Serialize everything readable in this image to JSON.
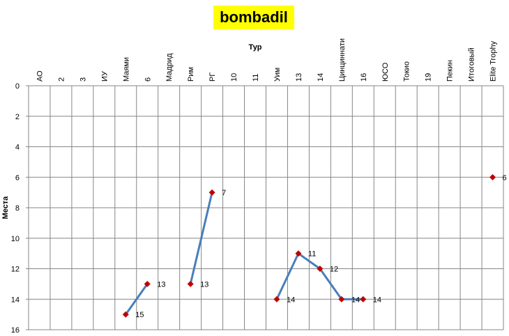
{
  "chart_data": {
    "type": "line",
    "title": "bombadil",
    "xlabel": "Тур",
    "ylabel": "Места",
    "categories": [
      "АО",
      "2",
      "3",
      "ИУ",
      "Маями",
      "6",
      "Мадрид",
      "Рим",
      "РГ",
      "10",
      "11",
      "Уим",
      "13",
      "14",
      "Цинциннати",
      "16",
      "ЮСО",
      "Токио",
      "19",
      "Пекин",
      "Итоговый",
      "Elite Trophy"
    ],
    "series": [
      {
        "values": [
          null,
          null,
          null,
          null,
          15,
          13,
          null,
          13,
          7,
          null,
          null,
          14,
          11,
          12,
          14,
          14,
          null,
          null,
          null,
          null,
          null,
          6
        ],
        "data_labels": [
          "",
          "",
          "",
          "",
          "15",
          "13",
          "",
          "13",
          "7",
          "",
          "",
          "14",
          "11",
          "12",
          "14",
          "14",
          "",
          "",
          "",
          "",
          "",
          "6"
        ]
      }
    ],
    "ylim": [
      0,
      16
    ],
    "y_reversed": true,
    "yticks": [
      "0",
      "2",
      "4",
      "6",
      "8",
      "10",
      "12",
      "14",
      "16"
    ],
    "grid": true,
    "line_color": "#4a7ebb",
    "marker_color": "#c00000",
    "title_background": "#ffff00"
  }
}
